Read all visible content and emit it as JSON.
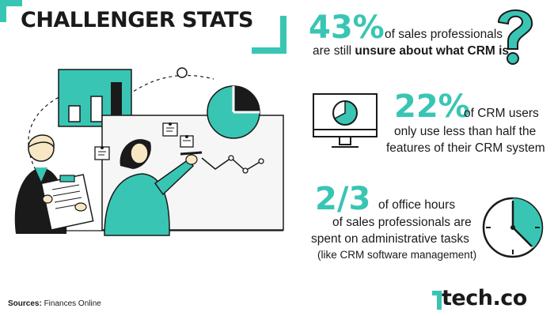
{
  "title": "CHALLENGER STATS",
  "stats": [
    {
      "figure": "43%",
      "line1_pre": "of sales professionals",
      "line2_pre": "are still ",
      "line2_bold": "unsure about what CRM is"
    },
    {
      "figure": "22%",
      "line1_pre": "of CRM users",
      "line2": "only use less than half the",
      "line3": "features of their CRM system"
    },
    {
      "figure": "2/3",
      "line1_pre": "of office hours",
      "line2": "of sales professionals are",
      "line3": "spent on administrative tasks",
      "line4": "(like CRM software management)"
    }
  ],
  "sources": {
    "label": "Sources:",
    "value": "Finances Online"
  },
  "logo": {
    "text": "tech.co"
  },
  "colors": {
    "accent": "#39c5b4",
    "ink": "#1a1a1a",
    "skin": "#f7e7c4",
    "bg": "#ffffff"
  },
  "icons": [
    "question-mark-icon",
    "monitor-pie-chart-icon",
    "clock-icon"
  ]
}
